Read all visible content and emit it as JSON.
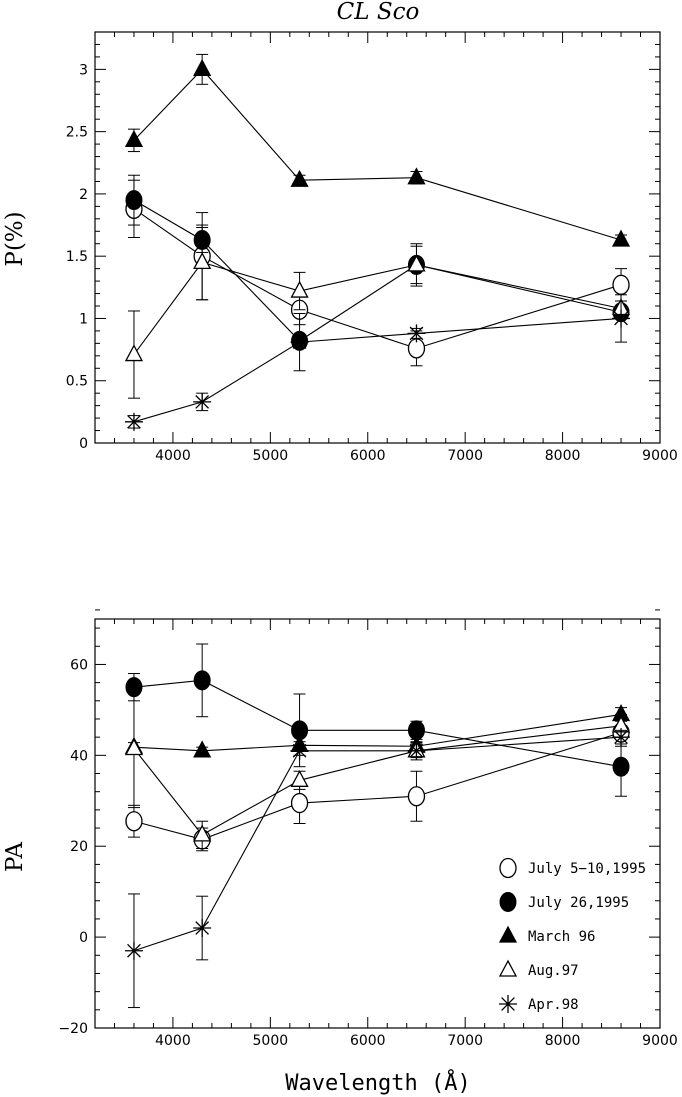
{
  "chart_data": [
    {
      "type": "line",
      "title": "CL Sco",
      "xlabel": "",
      "ylabel": "P(%)",
      "xlim": [
        3200,
        9000
      ],
      "ylim": [
        0,
        3.3
      ],
      "xticks": [
        4000,
        5000,
        6000,
        7000,
        8000,
        9000
      ],
      "yticks": [
        0,
        0.5,
        1,
        1.5,
        2,
        2.5,
        3
      ],
      "ytick_labels": [
        "0",
        "0.5",
        "1",
        "1.5",
        "2",
        "2.5",
        "3"
      ],
      "grid": false,
      "series": [
        {
          "name": "July 5-10,1995",
          "marker": "open-circle",
          "x": [
            3600,
            4300,
            5300,
            6500,
            8600
          ],
          "y": [
            1.88,
            1.5,
            1.07,
            0.76,
            1.27
          ],
          "err": [
            0.23,
            0.35,
            0.12,
            0.14,
            0.13
          ]
        },
        {
          "name": "July 26,1995",
          "marker": "filled-circle",
          "x": [
            3600,
            4300,
            5300,
            6500,
            8600
          ],
          "y": [
            1.95,
            1.63,
            0.82,
            1.43,
            1.05
          ],
          "err": [
            0.2,
            0.1,
            0.05,
            0.15,
            0.05
          ]
        },
        {
          "name": "March 96",
          "marker": "filled-triangle",
          "x": [
            3600,
            4300,
            5300,
            6500,
            8600
          ],
          "y": [
            2.43,
            3.0,
            2.11,
            2.13,
            1.63
          ],
          "err": [
            0.09,
            0.12,
            0.04,
            0.05,
            0.04
          ]
        },
        {
          "name": "Aug.97",
          "marker": "open-triangle",
          "x": [
            3600,
            4300,
            5300,
            6500,
            8600
          ],
          "y": [
            0.71,
            1.45,
            1.22,
            1.43,
            1.08
          ],
          "err": [
            0.35,
            0.3,
            0.15,
            0.17,
            0.06
          ]
        },
        {
          "name": "Apr.98",
          "marker": "asterisk",
          "x": [
            3600,
            4300,
            5300,
            6500,
            8600
          ],
          "y": [
            0.17,
            0.33,
            0.81,
            0.88,
            1.0
          ],
          "err": [
            0.05,
            0.07,
            0.23,
            0.04,
            0.19
          ]
        }
      ]
    },
    {
      "type": "line",
      "title": "",
      "xlabel": "Wavelength (Å)",
      "ylabel": "PA",
      "xlim": [
        3200,
        9000
      ],
      "ylim": [
        -20,
        70
      ],
      "xticks": [
        4000,
        5000,
        6000,
        7000,
        8000,
        9000
      ],
      "yticks": [
        -20,
        0,
        20,
        40,
        60
      ],
      "ytick_labels": [
        "−20",
        "0",
        "20",
        "40",
        "60"
      ],
      "grid": false,
      "legend_position": "bottom-right",
      "series": [
        {
          "name": "July 5-10,1995",
          "marker": "open-circle",
          "x": [
            3600,
            4300,
            5300,
            6500,
            8600
          ],
          "y": [
            25.5,
            21.5,
            29.5,
            31,
            45
          ],
          "err": [
            3.5,
            2.5,
            4.5,
            5.5,
            3
          ]
        },
        {
          "name": "July 26,1995",
          "marker": "filled-circle",
          "x": [
            3600,
            4300,
            5300,
            6500,
            8600
          ],
          "y": [
            55,
            56.5,
            45.5,
            45.5,
            37.5
          ],
          "err": [
            3,
            8,
            8,
            2,
            6.5
          ]
        },
        {
          "name": "March 96",
          "marker": "filled-triangle",
          "x": [
            3600,
            4300,
            5300,
            6500,
            8600
          ],
          "y": [
            41.8,
            41,
            42.2,
            42,
            49
          ],
          "err": [
            1,
            0.8,
            0.8,
            0.8,
            1.5
          ]
        },
        {
          "name": "Aug.97",
          "marker": "open-triangle",
          "x": [
            3600,
            4300,
            5300,
            6500,
            8600
          ],
          "y": [
            41.5,
            22.5,
            34.5,
            41,
            46.5
          ],
          "err": [
            13,
            3,
            2,
            2,
            2.5
          ]
        },
        {
          "name": "Apr.98",
          "marker": "asterisk",
          "x": [
            3600,
            4300,
            5300,
            6500,
            8600
          ],
          "y": [
            -3,
            2,
            41,
            41,
            44
          ],
          "err": [
            12.5,
            7,
            1,
            1.5,
            1.5
          ]
        }
      ]
    }
  ],
  "legend": {
    "entries": [
      {
        "marker": "open-circle",
        "label": "July 5−10,1995"
      },
      {
        "marker": "filled-circle",
        "label": "July 26,1995"
      },
      {
        "marker": "filled-triangle",
        "label": "March 96"
      },
      {
        "marker": "open-triangle",
        "label": "Aug.97"
      },
      {
        "marker": "asterisk",
        "label": "Apr.98"
      }
    ]
  }
}
